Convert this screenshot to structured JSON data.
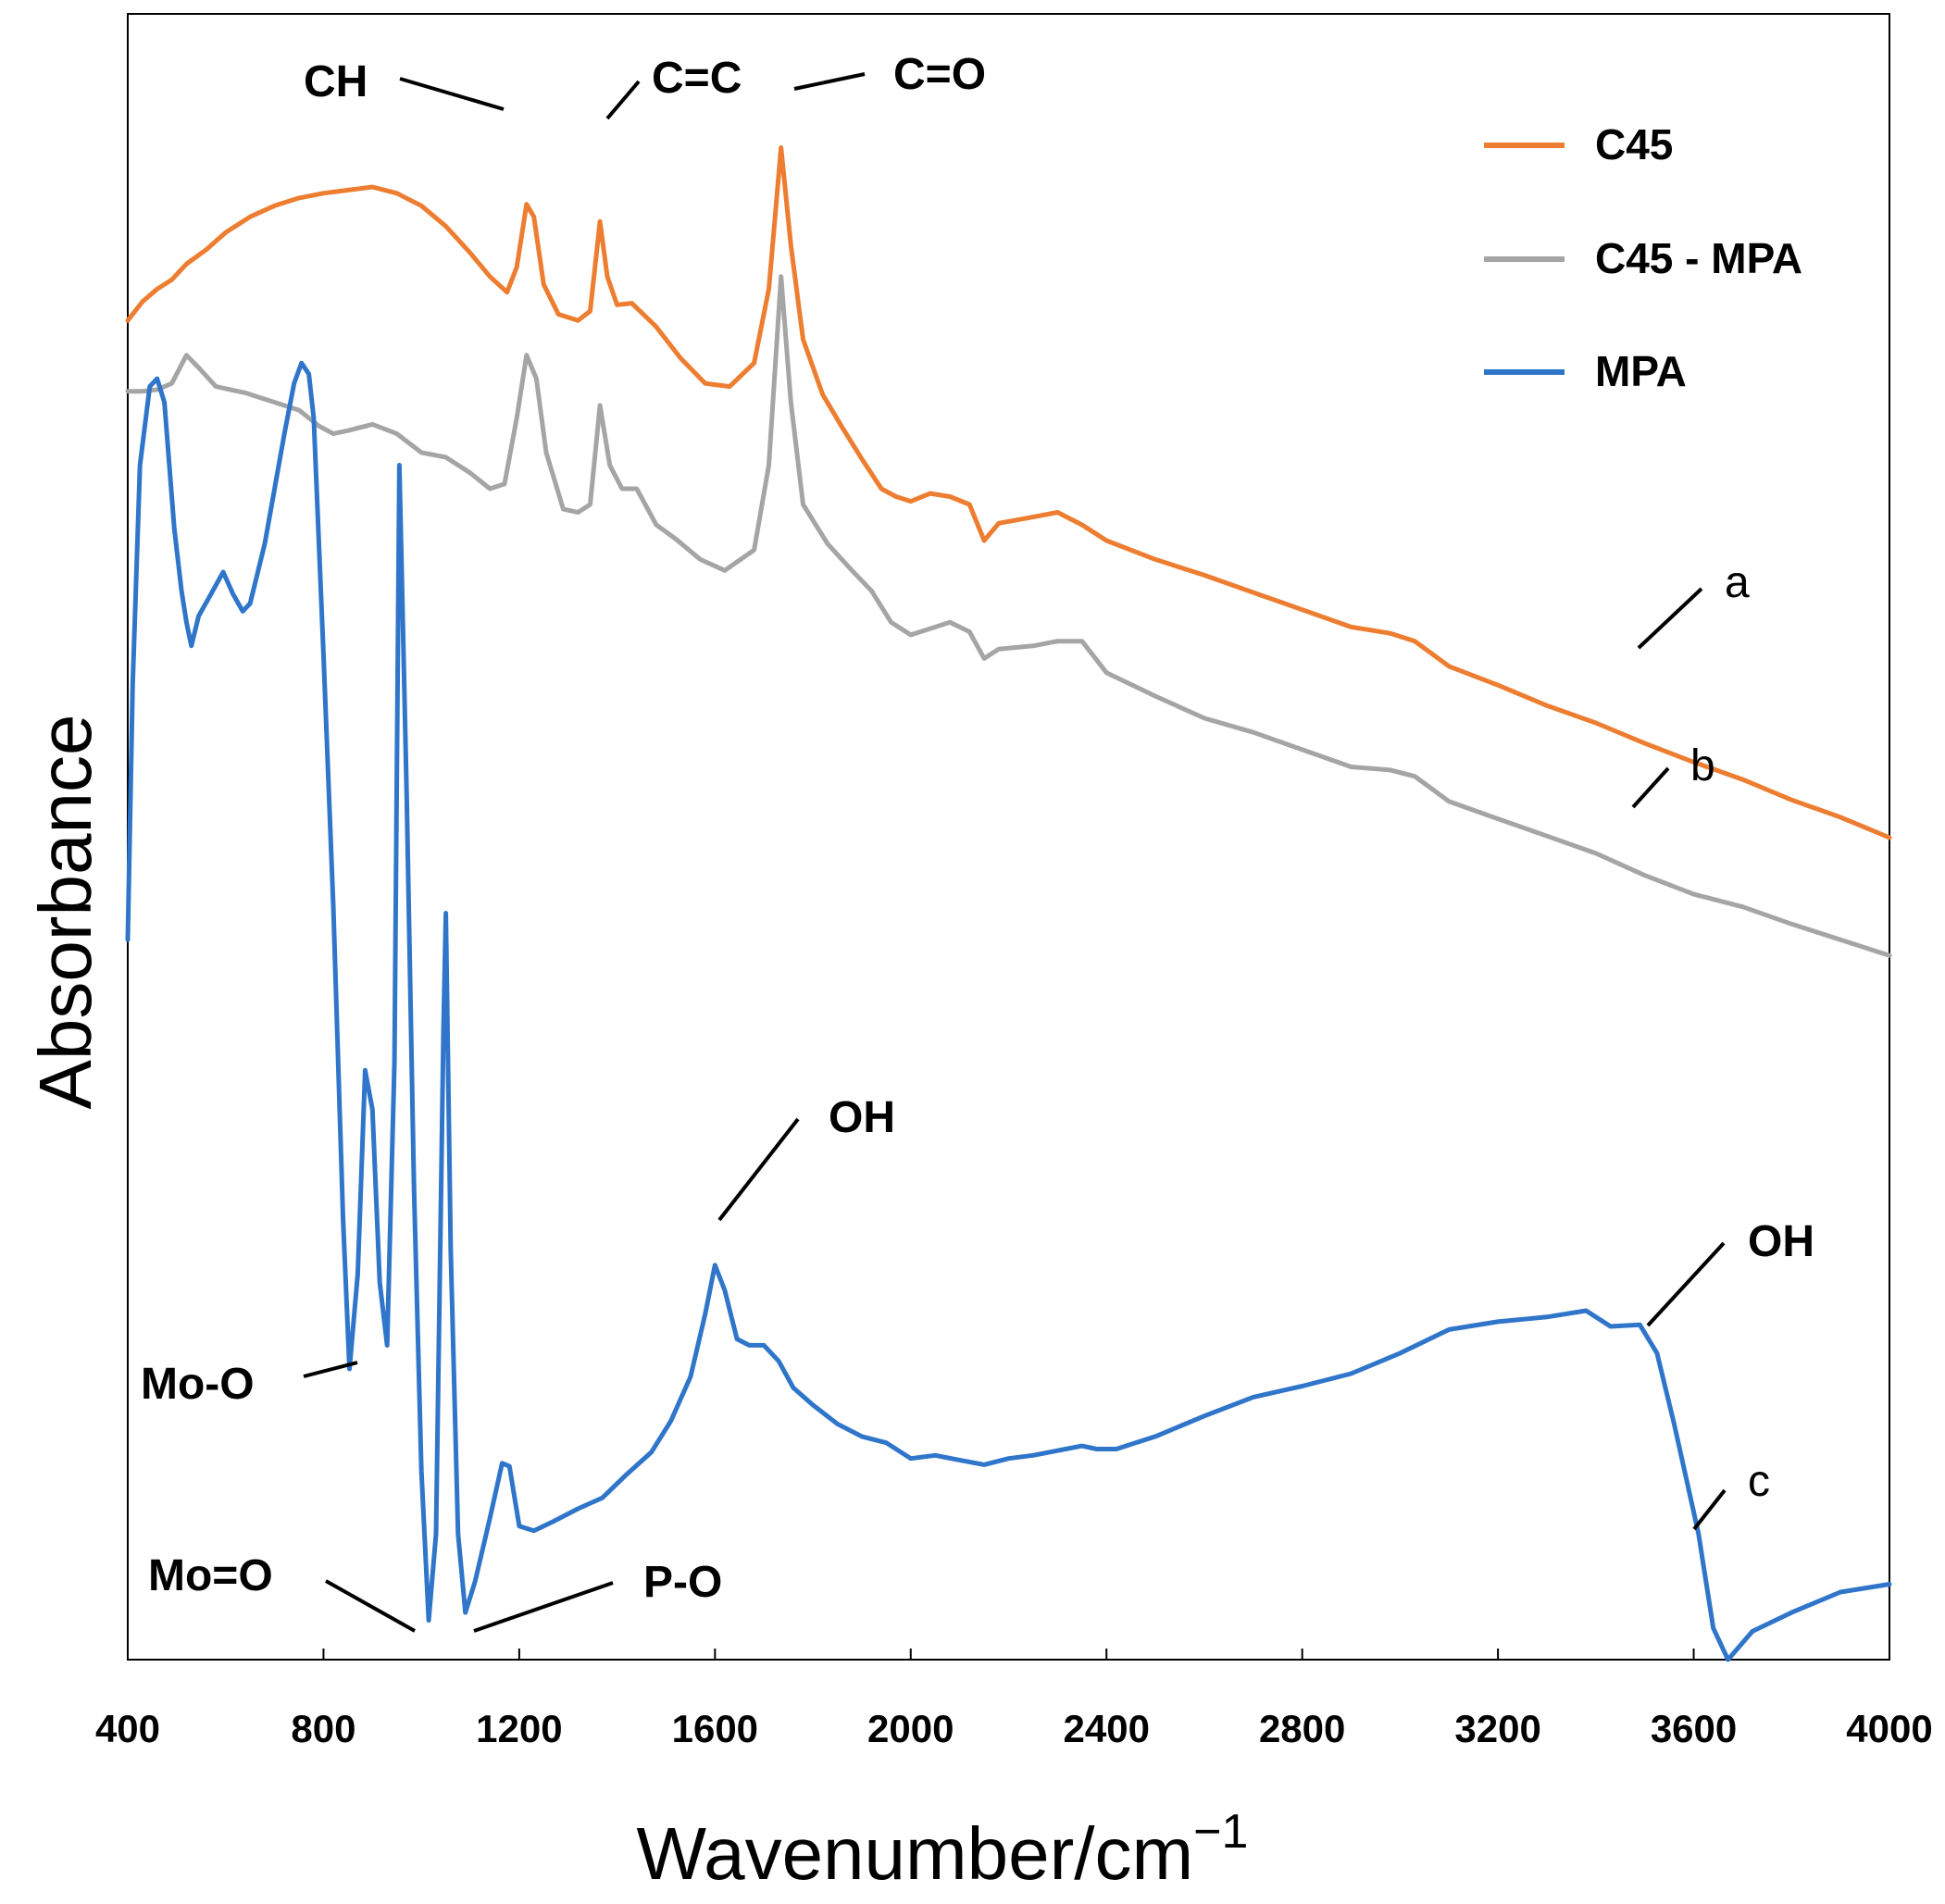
{
  "chart_data": {
    "type": "line",
    "title": "",
    "xlabel": "Wavenumber/cm",
    "xlabel_superscript": "−1",
    "ylabel": "Absorbance",
    "xlim": [
      400,
      4000
    ],
    "ylim": [
      0,
      1
    ],
    "yticks_shown": false,
    "xticks": [
      400,
      800,
      1200,
      1600,
      2000,
      2400,
      2800,
      3200,
      3600,
      4000
    ],
    "grid": false,
    "legend_position": "top-right",
    "series": [
      {
        "name": "C45",
        "curve_label": "a",
        "color": "#ED7D31",
        "points": [
          [
            400,
            0.852
          ],
          [
            430,
            0.864
          ],
          [
            460,
            0.872
          ],
          [
            490,
            0.878
          ],
          [
            520,
            0.888
          ],
          [
            560,
            0.897
          ],
          [
            600,
            0.908
          ],
          [
            650,
            0.918
          ],
          [
            700,
            0.925
          ],
          [
            750,
            0.93
          ],
          [
            800,
            0.933
          ],
          [
            850,
            0.935
          ],
          [
            900,
            0.937
          ],
          [
            950,
            0.933
          ],
          [
            1000,
            0.925
          ],
          [
            1050,
            0.912
          ],
          [
            1100,
            0.895
          ],
          [
            1140,
            0.88
          ],
          [
            1175,
            0.87
          ],
          [
            1195,
            0.886
          ],
          [
            1215,
            0.926
          ],
          [
            1230,
            0.918
          ],
          [
            1250,
            0.875
          ],
          [
            1280,
            0.856
          ],
          [
            1320,
            0.852
          ],
          [
            1345,
            0.858
          ],
          [
            1365,
            0.915
          ],
          [
            1380,
            0.88
          ],
          [
            1400,
            0.862
          ],
          [
            1430,
            0.863
          ],
          [
            1480,
            0.848
          ],
          [
            1530,
            0.828
          ],
          [
            1580,
            0.812
          ],
          [
            1630,
            0.81
          ],
          [
            1680,
            0.825
          ],
          [
            1710,
            0.872
          ],
          [
            1735,
            0.962
          ],
          [
            1755,
            0.9
          ],
          [
            1780,
            0.84
          ],
          [
            1820,
            0.805
          ],
          [
            1860,
            0.784
          ],
          [
            1900,
            0.764
          ],
          [
            1940,
            0.745
          ],
          [
            1970,
            0.74
          ],
          [
            2000,
            0.737
          ],
          [
            2040,
            0.742
          ],
          [
            2080,
            0.74
          ],
          [
            2120,
            0.735
          ],
          [
            2150,
            0.712
          ],
          [
            2180,
            0.723
          ],
          [
            2250,
            0.727
          ],
          [
            2300,
            0.73
          ],
          [
            2350,
            0.722
          ],
          [
            2400,
            0.712
          ],
          [
            2500,
            0.7
          ],
          [
            2600,
            0.69
          ],
          [
            2700,
            0.679
          ],
          [
            2800,
            0.668
          ],
          [
            2900,
            0.657
          ],
          [
            2980,
            0.653
          ],
          [
            3030,
            0.648
          ],
          [
            3100,
            0.632
          ],
          [
            3200,
            0.62
          ],
          [
            3300,
            0.607
          ],
          [
            3400,
            0.596
          ],
          [
            3500,
            0.583
          ],
          [
            3600,
            0.571
          ],
          [
            3700,
            0.56
          ],
          [
            3800,
            0.547
          ],
          [
            3900,
            0.536
          ],
          [
            4000,
            0.523
          ]
        ]
      },
      {
        "name": "C45 - MPA",
        "curve_label": "b",
        "color": "#A5A5A5",
        "points": [
          [
            400,
            0.807
          ],
          [
            430,
            0.807
          ],
          [
            460,
            0.808
          ],
          [
            490,
            0.812
          ],
          [
            520,
            0.83
          ],
          [
            545,
            0.822
          ],
          [
            580,
            0.81
          ],
          [
            640,
            0.806
          ],
          [
            700,
            0.8
          ],
          [
            750,
            0.795
          ],
          [
            790,
            0.785
          ],
          [
            820,
            0.78
          ],
          [
            850,
            0.782
          ],
          [
            900,
            0.786
          ],
          [
            950,
            0.78
          ],
          [
            1000,
            0.768
          ],
          [
            1050,
            0.765
          ],
          [
            1100,
            0.755
          ],
          [
            1140,
            0.745
          ],
          [
            1170,
            0.748
          ],
          [
            1195,
            0.79
          ],
          [
            1215,
            0.83
          ],
          [
            1235,
            0.815
          ],
          [
            1255,
            0.768
          ],
          [
            1290,
            0.732
          ],
          [
            1320,
            0.73
          ],
          [
            1345,
            0.735
          ],
          [
            1365,
            0.798
          ],
          [
            1385,
            0.76
          ],
          [
            1410,
            0.745
          ],
          [
            1440,
            0.745
          ],
          [
            1480,
            0.722
          ],
          [
            1520,
            0.713
          ],
          [
            1570,
            0.7
          ],
          [
            1620,
            0.693
          ],
          [
            1680,
            0.706
          ],
          [
            1710,
            0.76
          ],
          [
            1735,
            0.88
          ],
          [
            1755,
            0.8
          ],
          [
            1780,
            0.735
          ],
          [
            1830,
            0.71
          ],
          [
            1880,
            0.693
          ],
          [
            1920,
            0.68
          ],
          [
            1960,
            0.66
          ],
          [
            2000,
            0.652
          ],
          [
            2040,
            0.656
          ],
          [
            2080,
            0.66
          ],
          [
            2120,
            0.654
          ],
          [
            2150,
            0.637
          ],
          [
            2180,
            0.643
          ],
          [
            2250,
            0.645
          ],
          [
            2300,
            0.648
          ],
          [
            2350,
            0.648
          ],
          [
            2400,
            0.628
          ],
          [
            2500,
            0.613
          ],
          [
            2600,
            0.599
          ],
          [
            2700,
            0.59
          ],
          [
            2800,
            0.579
          ],
          [
            2900,
            0.568
          ],
          [
            2980,
            0.566
          ],
          [
            3030,
            0.562
          ],
          [
            3100,
            0.546
          ],
          [
            3200,
            0.535
          ],
          [
            3300,
            0.524
          ],
          [
            3400,
            0.513
          ],
          [
            3500,
            0.499
          ],
          [
            3600,
            0.487
          ],
          [
            3700,
            0.479
          ],
          [
            3800,
            0.468
          ],
          [
            3900,
            0.458
          ],
          [
            4000,
            0.448
          ]
        ]
      },
      {
        "name": "MPA",
        "curve_label": "c",
        "color": "#2F75C9",
        "points": [
          [
            400,
            0.458
          ],
          [
            410,
            0.62
          ],
          [
            425,
            0.76
          ],
          [
            445,
            0.81
          ],
          [
            460,
            0.815
          ],
          [
            475,
            0.8
          ],
          [
            495,
            0.72
          ],
          [
            510,
            0.68
          ],
          [
            520,
            0.66
          ],
          [
            530,
            0.645
          ],
          [
            545,
            0.664
          ],
          [
            570,
            0.678
          ],
          [
            595,
            0.692
          ],
          [
            615,
            0.678
          ],
          [
            635,
            0.667
          ],
          [
            650,
            0.672
          ],
          [
            680,
            0.71
          ],
          [
            700,
            0.745
          ],
          [
            720,
            0.78
          ],
          [
            740,
            0.812
          ],
          [
            755,
            0.825
          ],
          [
            770,
            0.818
          ],
          [
            780,
            0.79
          ],
          [
            800,
            0.64
          ],
          [
            820,
            0.48
          ],
          [
            840,
            0.28
          ],
          [
            853,
            0.185
          ],
          [
            870,
            0.245
          ],
          [
            885,
            0.375
          ],
          [
            900,
            0.35
          ],
          [
            915,
            0.24
          ],
          [
            930,
            0.2
          ],
          [
            945,
            0.38
          ],
          [
            955,
            0.76
          ],
          [
            970,
            0.55
          ],
          [
            985,
            0.3
          ],
          [
            1000,
            0.12
          ],
          [
            1015,
            0.025
          ],
          [
            1030,
            0.08
          ],
          [
            1045,
            0.4
          ],
          [
            1050,
            0.475
          ],
          [
            1060,
            0.26
          ],
          [
            1075,
            0.08
          ],
          [
            1090,
            0.03
          ],
          [
            1110,
            0.05
          ],
          [
            1140,
            0.09
          ],
          [
            1165,
            0.125
          ],
          [
            1180,
            0.123
          ],
          [
            1200,
            0.085
          ],
          [
            1230,
            0.082
          ],
          [
            1270,
            0.088
          ],
          [
            1320,
            0.096
          ],
          [
            1370,
            0.103
          ],
          [
            1420,
            0.118
          ],
          [
            1470,
            0.132
          ],
          [
            1510,
            0.152
          ],
          [
            1550,
            0.18
          ],
          [
            1580,
            0.22
          ],
          [
            1600,
            0.251
          ],
          [
            1620,
            0.235
          ],
          [
            1645,
            0.204
          ],
          [
            1670,
            0.2
          ],
          [
            1700,
            0.2
          ],
          [
            1730,
            0.19
          ],
          [
            1760,
            0.173
          ],
          [
            1800,
            0.162
          ],
          [
            1850,
            0.15
          ],
          [
            1900,
            0.142
          ],
          [
            1950,
            0.138
          ],
          [
            2000,
            0.128
          ],
          [
            2050,
            0.13
          ],
          [
            2100,
            0.127
          ],
          [
            2150,
            0.124
          ],
          [
            2200,
            0.128
          ],
          [
            2250,
            0.13
          ],
          [
            2300,
            0.133
          ],
          [
            2350,
            0.136
          ],
          [
            2380,
            0.134
          ],
          [
            2420,
            0.134
          ],
          [
            2500,
            0.142
          ],
          [
            2600,
            0.155
          ],
          [
            2700,
            0.167
          ],
          [
            2800,
            0.174
          ],
          [
            2900,
            0.182
          ],
          [
            3000,
            0.195
          ],
          [
            3100,
            0.21
          ],
          [
            3200,
            0.215
          ],
          [
            3300,
            0.218
          ],
          [
            3380,
            0.222
          ],
          [
            3430,
            0.212
          ],
          [
            3490,
            0.213
          ],
          [
            3525,
            0.195
          ],
          [
            3560,
            0.15
          ],
          [
            3610,
            0.08
          ],
          [
            3640,
            0.02
          ],
          [
            3670,
            0.0
          ],
          [
            3720,
            0.018
          ],
          [
            3800,
            0.03
          ],
          [
            3900,
            0.043
          ],
          [
            4000,
            0.048
          ]
        ]
      }
    ],
    "annotations": [
      {
        "text": "CH",
        "x": 1215
      },
      {
        "text": "C=C",
        "x": 1365
      },
      {
        "text": "C=O",
        "x": 1735
      },
      {
        "text": "OH",
        "x": 1600
      },
      {
        "text": "OH",
        "x": 3500
      },
      {
        "text": "Mo-O",
        "x": 880
      },
      {
        "text": "Mo=O",
        "x": 1015
      },
      {
        "text": "P-O",
        "x": 1090
      }
    ]
  }
}
